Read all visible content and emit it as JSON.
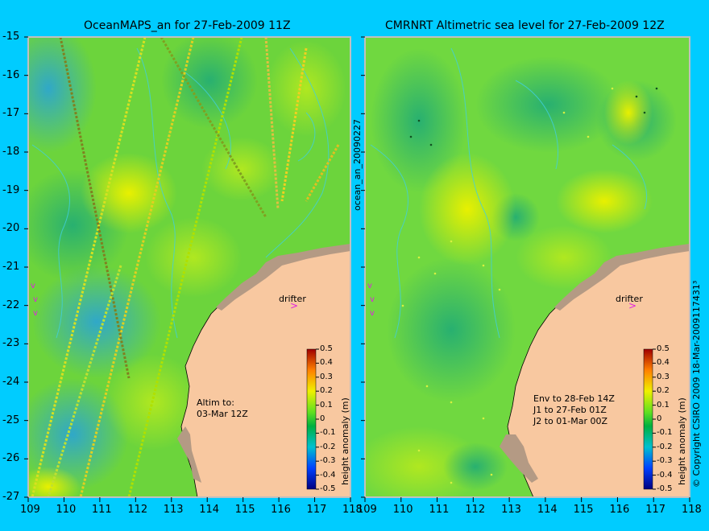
{
  "background_color": "#00ccff",
  "land_color": "#f8c8a0",
  "left_panel": {
    "title": "OceanMAPS_an for 27-Feb-2009 11Z",
    "side_label": "ocean_an_20090227",
    "drifter_label": "drifter",
    "altim_note_line1": "Altim to:",
    "altim_note_line2": "03-Mar 12Z"
  },
  "right_panel": {
    "title": "CMRNRT Altimetric sea level  for 27-Feb-2009 12Z",
    "drifter_label": "drifter",
    "env_line1": "Env to 28-Feb 14Z",
    "env_line2": "J1 to 27-Feb 01Z",
    "env_line3": "J2 to 01-Mar 00Z",
    "copyright": "© Copyright CSIRO 2009   18-Mar-2009117431³"
  },
  "axes": {
    "x_ticks": [
      "109",
      "110",
      "111",
      "112",
      "113",
      "114",
      "115",
      "116",
      "117",
      "118"
    ],
    "y_ticks": [
      "-15",
      "-16",
      "-17",
      "-18",
      "-19",
      "-20",
      "-21",
      "-22",
      "-23",
      "-24",
      "-25",
      "-26",
      "-27"
    ],
    "x_range": [
      109,
      118
    ],
    "y_range": [
      -27,
      -15
    ]
  },
  "colorbar": {
    "label": "height anomaly (m)",
    "ticks": [
      "0.5",
      "0.4",
      "0.3",
      "0.2",
      "0.1",
      "0",
      "-0.1",
      "-0.2",
      "-0.3",
      "-0.4",
      "-0.5"
    ],
    "range": [
      -0.5,
      0.5
    ]
  }
}
